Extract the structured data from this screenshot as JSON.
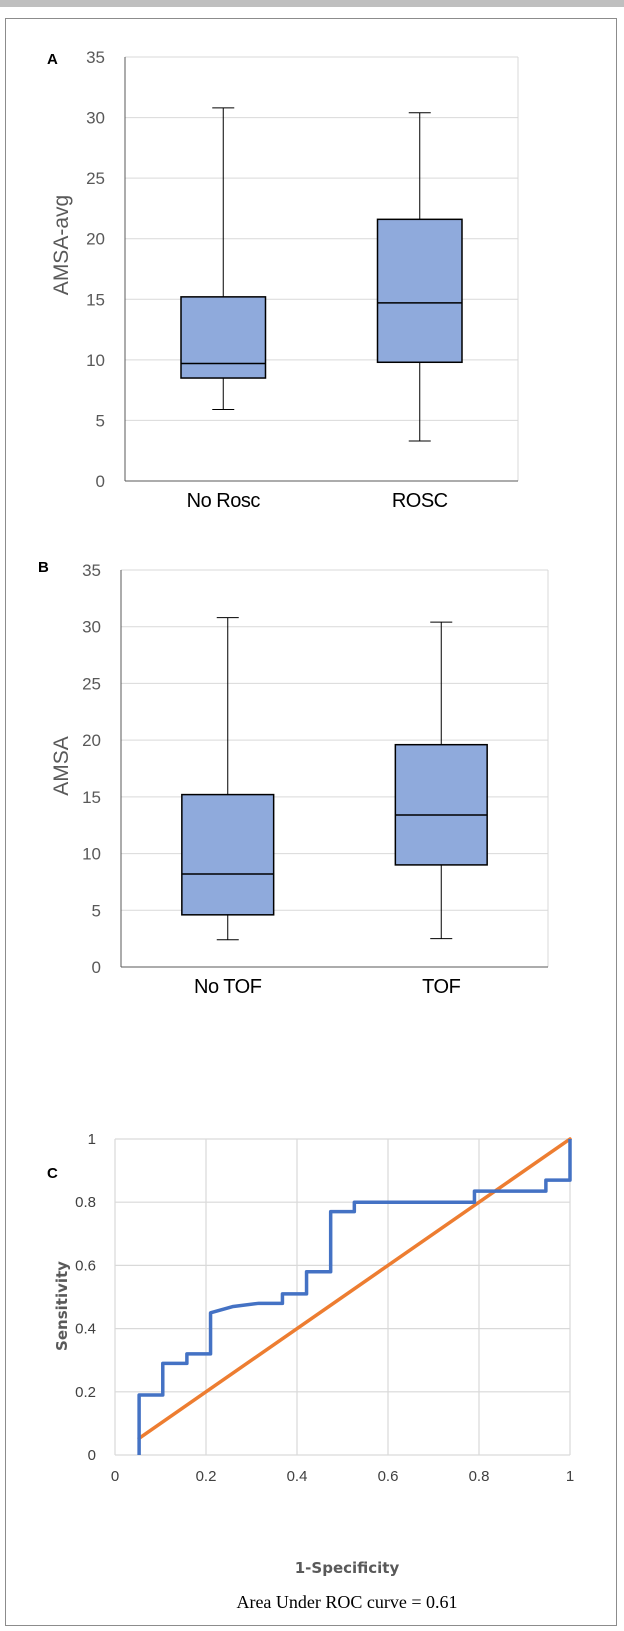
{
  "colors": {
    "box_fill": "#8faadc",
    "box_stroke": "#000000",
    "grid": "#d9d9d9",
    "roc_curve": "#4472c4",
    "reference_line": "#ed7d31"
  },
  "chart_data": [
    {
      "panel": "A",
      "type": "box",
      "ylabel": "AMSA-avg",
      "ylim": [
        0,
        35
      ],
      "yticks": [
        0,
        5,
        10,
        15,
        20,
        25,
        30,
        35
      ],
      "grid": true,
      "categories": [
        "No Rosc",
        "ROSC"
      ],
      "boxes": [
        {
          "label": "No Rosc",
          "min": 5.9,
          "q1": 8.5,
          "median": 9.7,
          "q3": 15.2,
          "max": 30.8
        },
        {
          "label": "ROSC",
          "min": 3.3,
          "q1": 9.8,
          "median": 14.7,
          "q3": 21.6,
          "max": 30.4
        }
      ]
    },
    {
      "panel": "B",
      "type": "box",
      "ylabel": "AMSA",
      "ylim": [
        0,
        35
      ],
      "yticks": [
        0,
        5,
        10,
        15,
        20,
        25,
        30,
        35
      ],
      "grid": true,
      "categories": [
        "No TOF",
        "TOF"
      ],
      "boxes": [
        {
          "label": "No TOF",
          "min": 2.4,
          "q1": 4.6,
          "median": 8.2,
          "q3": 15.2,
          "max": 30.8
        },
        {
          "label": "TOF",
          "min": 2.5,
          "q1": 9.0,
          "median": 13.4,
          "q3": 19.6,
          "max": 30.4
        }
      ]
    },
    {
      "panel": "C",
      "type": "line",
      "xlabel": "1-Specificity",
      "ylabel": "Sensitivity",
      "xlim": [
        0,
        1
      ],
      "ylim": [
        0,
        1
      ],
      "xticks": [
        "0",
        "0.2",
        "0.4",
        "0.6",
        "0.8",
        "1"
      ],
      "yticks": [
        "0",
        "0.2",
        "0.4",
        "0.6",
        "0.8",
        "1"
      ],
      "grid": true,
      "annotation": "Area Under ROC curve = 0.61",
      "series": [
        {
          "role": "roc",
          "x": [
            0.053,
            0.053,
            0.105,
            0.105,
            0.158,
            0.158,
            0.21,
            0.21,
            0.26,
            0.316,
            0.368,
            0.368,
            0.421,
            0.421,
            0.474,
            0.474,
            0.526,
            0.526,
            0.79,
            0.79,
            0.947,
            0.947,
            1.0,
            1.0
          ],
          "y": [
            0.0,
            0.19,
            0.19,
            0.29,
            0.29,
            0.32,
            0.32,
            0.45,
            0.47,
            0.48,
            0.48,
            0.51,
            0.51,
            0.58,
            0.58,
            0.77,
            0.77,
            0.8,
            0.8,
            0.835,
            0.835,
            0.87,
            0.87,
            1.0
          ]
        },
        {
          "role": "reference",
          "x": [
            0.053,
            1.0
          ],
          "y": [
            0.053,
            1.0
          ]
        }
      ]
    }
  ]
}
